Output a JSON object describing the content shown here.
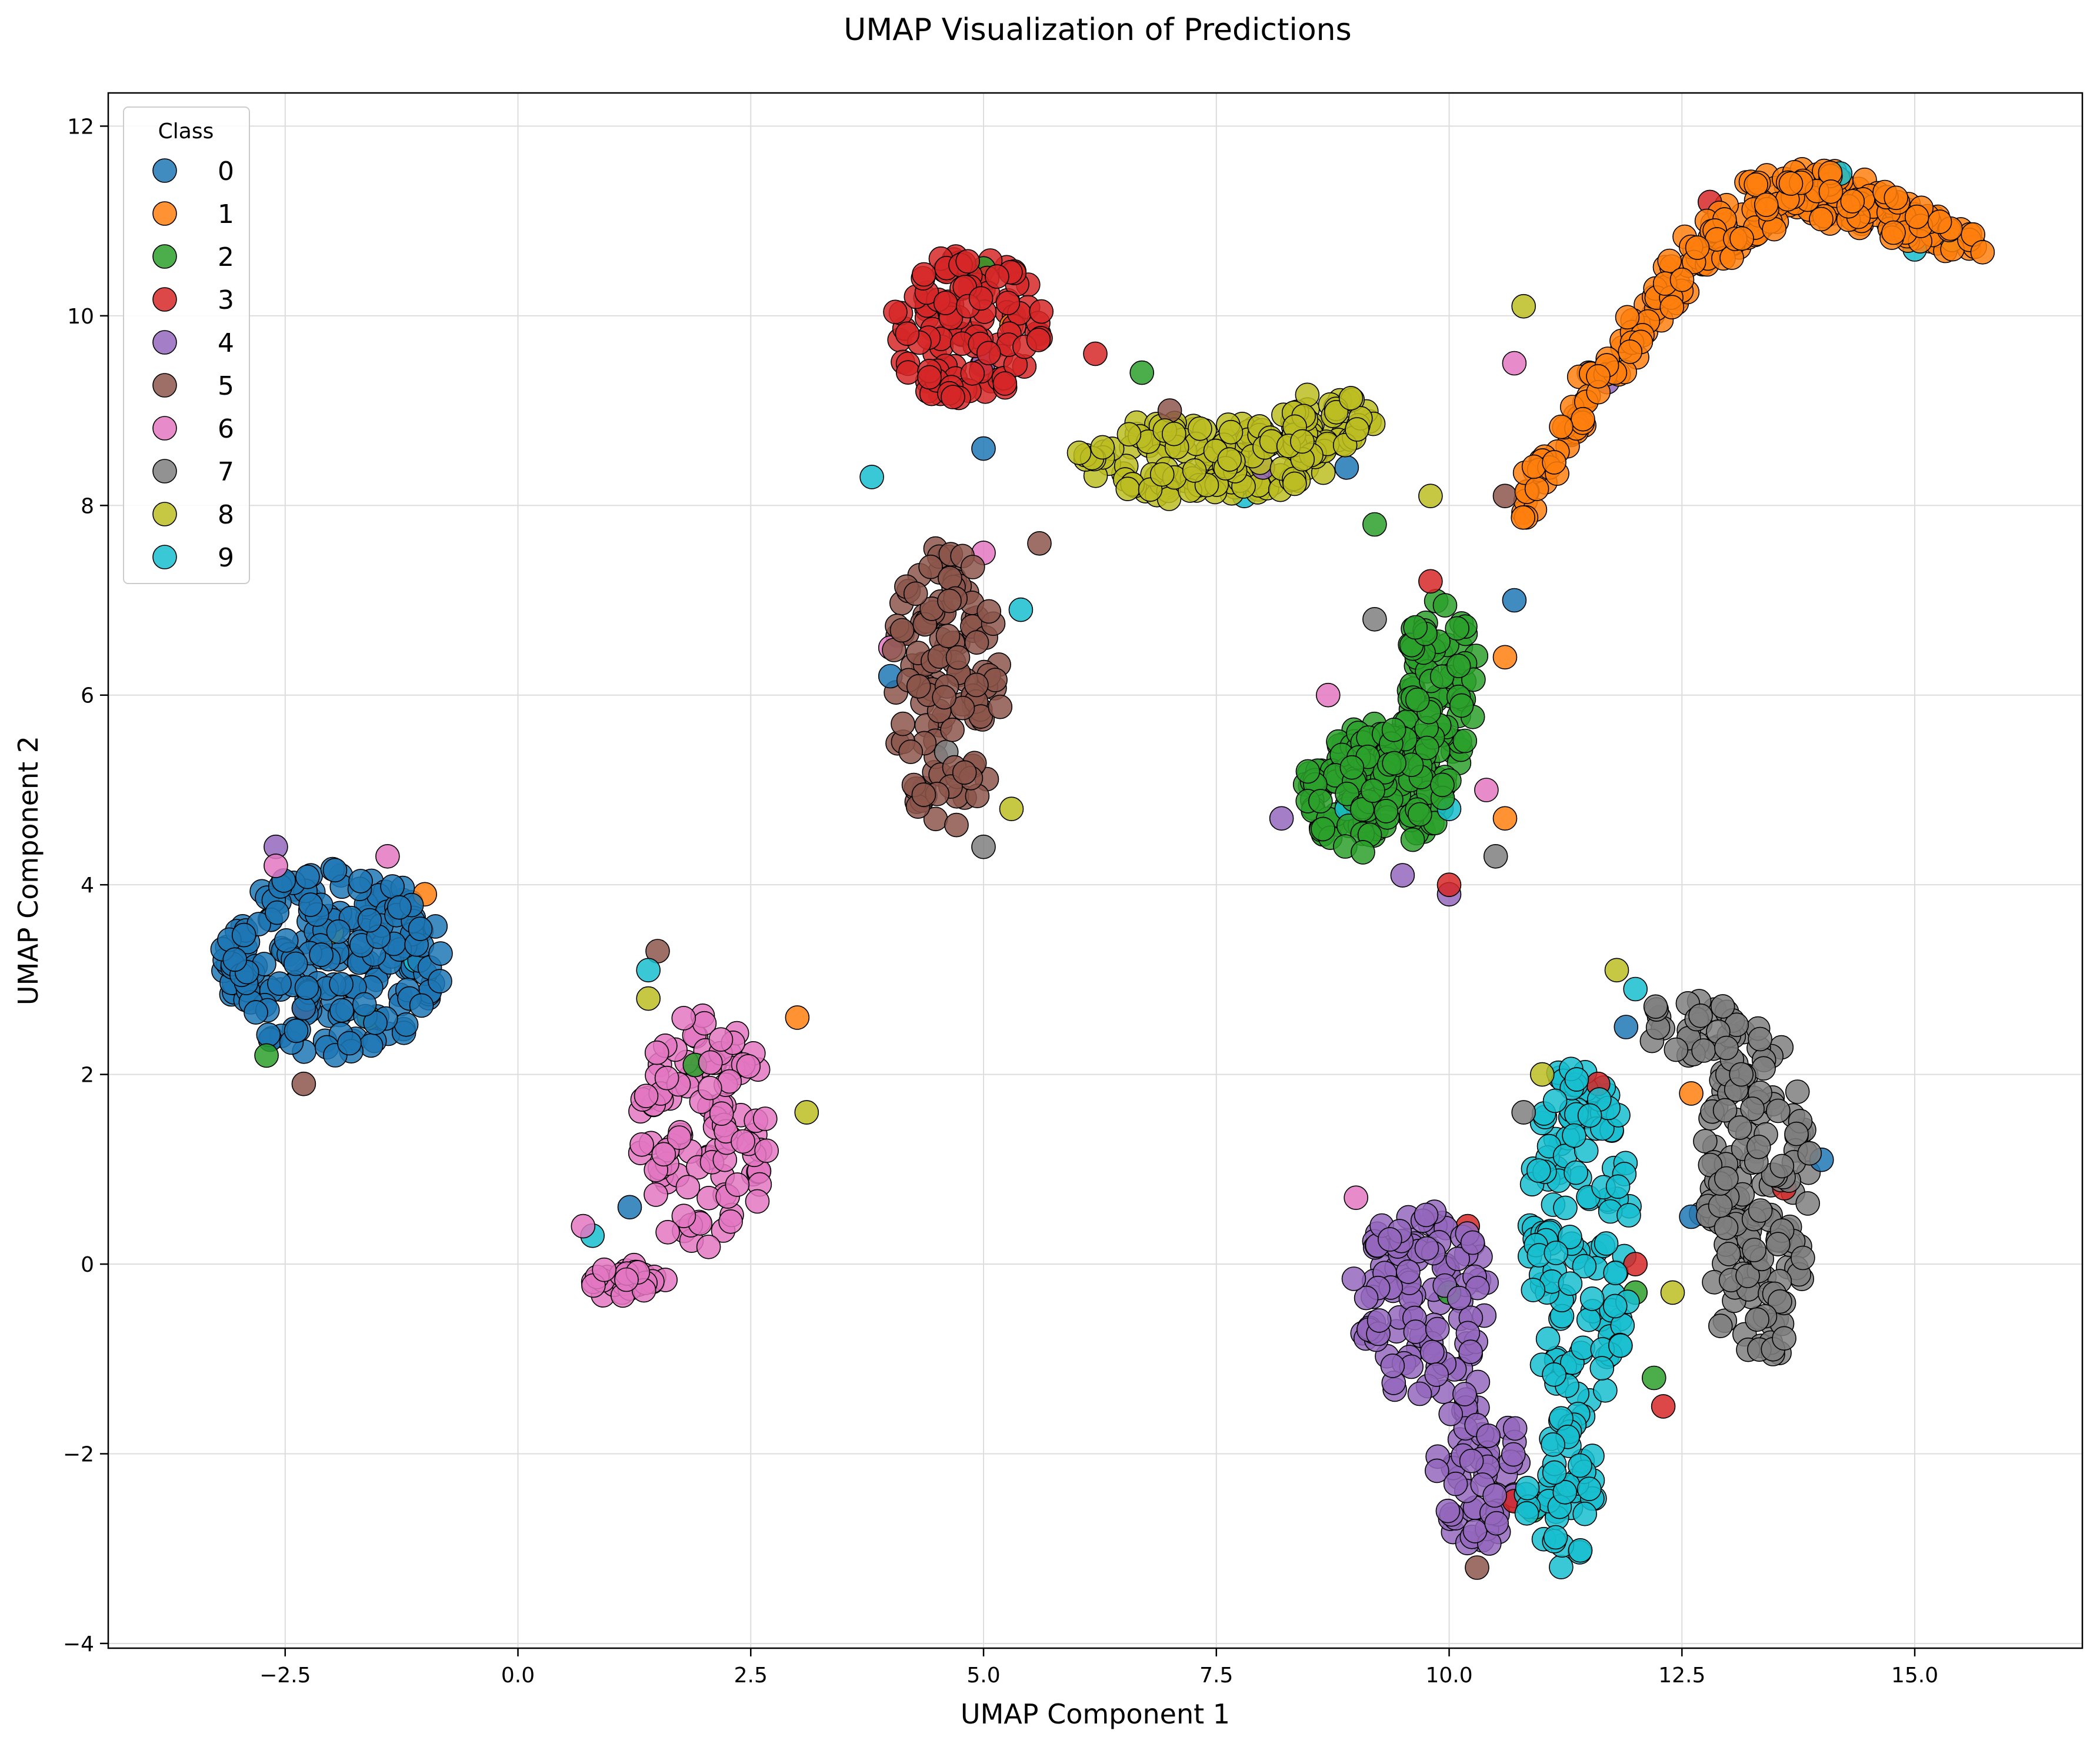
{
  "chart_data": {
    "type": "scatter",
    "title": "UMAP Visualization of Predictions",
    "xlabel": "UMAP Component 1",
    "ylabel": "UMAP Component 2",
    "xlim": [
      -4.4,
      16.8
    ],
    "ylim": [
      -4.05,
      12.35
    ],
    "xticks": [
      -2.5,
      0.0,
      2.5,
      5.0,
      7.5,
      10.0,
      12.5,
      15.0
    ],
    "xtick_labels": [
      "−2.5",
      "0.0",
      "2.5",
      "5.0",
      "7.5",
      "10.0",
      "12.5",
      "15.0"
    ],
    "yticks": [
      -4,
      -2,
      0,
      2,
      4,
      6,
      8,
      10,
      12
    ],
    "ytick_labels": [
      "−4",
      "−2",
      "0",
      "2",
      "4",
      "6",
      "8",
      "10",
      "12"
    ],
    "grid": true,
    "legend": {
      "title": "Class",
      "position": "top-left",
      "entries": [
        "0",
        "1",
        "2",
        "3",
        "4",
        "5",
        "6",
        "7",
        "8",
        "9"
      ]
    },
    "colors": [
      "#1f77b4",
      "#ff7f0e",
      "#2ca02c",
      "#d62728",
      "#9467bd",
      "#8c564b",
      "#e377c2",
      "#7f7f7f",
      "#bcbd22",
      "#17becf"
    ],
    "series": [
      {
        "class": "0",
        "clusters": [
          {
            "cx": -2.0,
            "cy": 3.2,
            "rx": 1.2,
            "ry": 1.0,
            "n": 220
          }
        ],
        "noise": [
          [
            -2.3,
            2.7
          ],
          [
            4.0,
            6.2
          ],
          [
            11.9,
            2.5
          ],
          [
            14.0,
            1.1
          ],
          [
            1.2,
            0.6
          ],
          [
            12.6,
            0.5
          ],
          [
            5.0,
            8.6
          ],
          [
            10.7,
            7.0
          ],
          [
            8.9,
            8.4
          ]
        ]
      },
      {
        "class": "1",
        "arc": {
          "x0": 10.8,
          "x1": 15.7,
          "n": 260
        },
        "noise": [
          [
            -1.0,
            3.9
          ],
          [
            3.0,
            2.6
          ],
          [
            10.6,
            6.4
          ],
          [
            10.6,
            4.7
          ],
          [
            5.3,
            9.9
          ],
          [
            12.6,
            1.8
          ]
        ]
      },
      {
        "class": "2",
        "clusters": [
          {
            "cx": 9.2,
            "cy": 5.0,
            "rx": 0.75,
            "ry": 0.7,
            "n": 150
          },
          {
            "cx": 9.9,
            "cy": 6.0,
            "rx": 0.45,
            "ry": 1.0,
            "n": 80
          }
        ],
        "noise": [
          [
            9.2,
            7.8
          ],
          [
            6.7,
            9.4
          ],
          [
            -2.7,
            2.2
          ],
          [
            5.0,
            10.5
          ],
          [
            12.0,
            -0.3
          ],
          [
            12.2,
            -1.2
          ],
          [
            10.0,
            -0.3
          ],
          [
            1.9,
            2.1
          ],
          [
            -1.6,
            2.6
          ],
          [
            10.9,
            -2.6
          ]
        ]
      },
      {
        "class": "3",
        "clusters": [
          {
            "cx": 4.8,
            "cy": 9.9,
            "rx": 0.85,
            "ry": 0.8,
            "n": 120
          }
        ],
        "noise": [
          [
            -2.3,
            2.7
          ],
          [
            12.8,
            11.2
          ],
          [
            13.6,
            0.8
          ],
          [
            12.0,
            0.0
          ],
          [
            9.8,
            7.2
          ],
          [
            10.7,
            -2.5
          ],
          [
            12.3,
            -1.5
          ],
          [
            10.2,
            0.4
          ],
          [
            11.6,
            1.9
          ],
          [
            6.2,
            9.6
          ],
          [
            10.0,
            4.0
          ]
        ]
      },
      {
        "class": "4",
        "clusters": [
          {
            "cx": 9.7,
            "cy": -0.4,
            "rx": 0.75,
            "ry": 1.0,
            "n": 110
          },
          {
            "cx": 10.3,
            "cy": -2.1,
            "rx": 0.45,
            "ry": 0.9,
            "n": 60
          }
        ],
        "noise": [
          [
            5.0,
            9.5
          ],
          [
            8.0,
            8.4
          ],
          [
            9.5,
            4.1
          ],
          [
            8.2,
            4.7
          ],
          [
            10.0,
            3.9
          ],
          [
            11.7,
            9.3
          ],
          [
            -2.6,
            4.4
          ]
        ]
      },
      {
        "class": "5",
        "clusters": [
          {
            "cx": 4.6,
            "cy": 6.1,
            "rx": 0.6,
            "ry": 1.5,
            "n": 130
          }
        ],
        "noise": [
          [
            10.6,
            8.1
          ],
          [
            1.5,
            3.3
          ],
          [
            -2.3,
            1.9
          ],
          [
            5.6,
            7.6
          ],
          [
            10.3,
            -3.2
          ],
          [
            7.0,
            9.0
          ],
          [
            11.5,
            9.4
          ]
        ]
      },
      {
        "class": "6",
        "clusters": [
          {
            "cx": 2.0,
            "cy": 1.4,
            "rx": 0.7,
            "ry": 1.3,
            "n": 110
          },
          {
            "cx": 1.2,
            "cy": -0.2,
            "rx": 0.4,
            "ry": 0.2,
            "n": 30
          }
        ],
        "noise": [
          [
            0.7,
            0.4
          ],
          [
            -2.6,
            4.2
          ],
          [
            4.0,
            6.5
          ],
          [
            8.7,
            6.0
          ],
          [
            10.7,
            9.5
          ],
          [
            9.0,
            0.7
          ],
          [
            -1.4,
            4.3
          ],
          [
            5.0,
            7.5
          ],
          [
            10.4,
            5.0
          ]
        ]
      },
      {
        "class": "7",
        "clusters": [
          {
            "cx": 13.3,
            "cy": 0.7,
            "rx": 0.6,
            "ry": 1.8,
            "n": 160
          },
          {
            "cx": 12.6,
            "cy": 2.5,
            "rx": 0.6,
            "ry": 0.3,
            "n": 30
          }
        ],
        "noise": [
          [
            5.0,
            4.4
          ],
          [
            10.5,
            4.3
          ],
          [
            4.6,
            5.4
          ],
          [
            10.8,
            1.6
          ],
          [
            9.2,
            6.8
          ]
        ]
      },
      {
        "class": "8",
        "clusters": [
          {
            "cx": 7.4,
            "cy": 8.5,
            "rx": 1.4,
            "ry": 0.45,
            "n": 160
          },
          {
            "cx": 8.7,
            "cy": 8.9,
            "rx": 0.5,
            "ry": 0.3,
            "n": 40
          }
        ],
        "noise": [
          [
            9.8,
            8.1
          ],
          [
            11.0,
            2.0
          ],
          [
            -2.0,
            3.5
          ],
          [
            3.1,
            1.6
          ],
          [
            11.8,
            3.1
          ],
          [
            12.4,
            -0.3
          ],
          [
            10.8,
            10.1
          ],
          [
            15.4,
            10.8
          ],
          [
            1.4,
            2.8
          ],
          [
            5.3,
            4.8
          ]
        ]
      },
      {
        "class": "9",
        "clusters": [
          {
            "cx": 11.4,
            "cy": 0.2,
            "rx": 0.55,
            "ry": 2.1,
            "n": 140
          },
          {
            "cx": 11.2,
            "cy": -2.4,
            "rx": 0.4,
            "ry": 0.8,
            "n": 50
          }
        ],
        "noise": [
          [
            1.4,
            3.1
          ],
          [
            0.8,
            0.3
          ],
          [
            3.8,
            8.3
          ],
          [
            5.4,
            6.9
          ],
          [
            8.9,
            4.8
          ],
          [
            10.0,
            4.8
          ],
          [
            14.2,
            11.5
          ],
          [
            15.0,
            10.7
          ],
          [
            -1.1,
            3.2
          ],
          [
            7.8,
            8.1
          ],
          [
            12.0,
            2.9
          ]
        ]
      }
    ]
  }
}
